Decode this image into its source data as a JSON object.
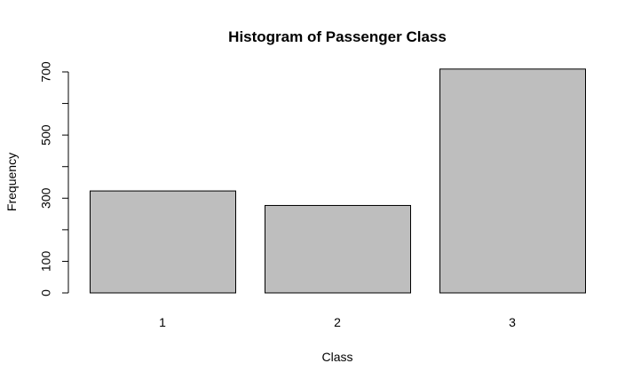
{
  "chart_data": {
    "type": "bar",
    "title": "Histogram of Passenger Class",
    "xlabel": "Class",
    "ylabel": "Frequency",
    "categories": [
      "1",
      "2",
      "3"
    ],
    "values": [
      323,
      277,
      709
    ],
    "ylim": [
      0,
      700
    ],
    "y_ticks": [
      0,
      100,
      200,
      300,
      400,
      500,
      600,
      700
    ],
    "y_tick_labels": [
      "0",
      "100",
      "",
      "300",
      "",
      "500",
      "",
      "700"
    ],
    "grid": false,
    "legend": "none",
    "bar_fill": "#bebebe",
    "bar_stroke": "#000000"
  }
}
